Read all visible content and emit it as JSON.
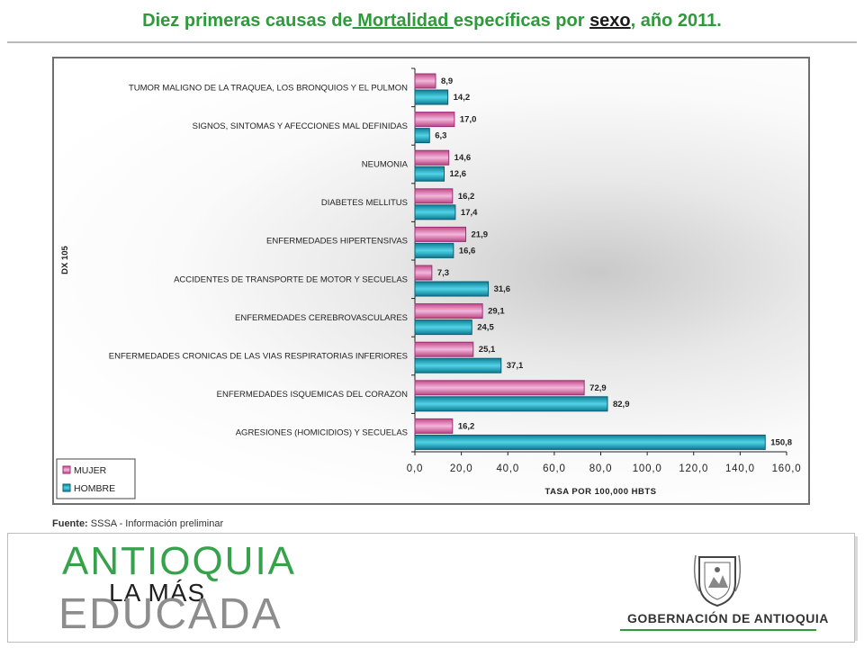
{
  "title": {
    "part1": "Diez primeras causas de",
    "part2": " Mortalidad ",
    "part3": "específicas por ",
    "part4": "sexo",
    "part5": ", año 2011."
  },
  "chart_data": {
    "type": "bar",
    "orientation": "horizontal",
    "categories": [
      "TUMOR MALIGNO DE LA TRAQUEA, LOS BRONQUIOS Y EL PULMON",
      "SIGNOS, SINTOMAS Y AFECCIONES MAL DEFINIDAS",
      "NEUMONIA",
      "DIABETES MELLITUS",
      "ENFERMEDADES HIPERTENSIVAS",
      "ACCIDENTES DE TRANSPORTE DE MOTOR Y SECUELAS",
      "ENFERMEDADES CEREBROVASCULARES",
      "ENFERMEDADES CRONICAS DE LAS VIAS RESPIRATORIAS INFERIORES",
      "ENFERMEDADES ISQUEMICAS DEL CORAZON",
      "AGRESIONES (HOMICIDIOS) Y SECUELAS"
    ],
    "series": [
      {
        "name": "MUJER",
        "color": "#d9589e",
        "values": [
          8.9,
          17.0,
          14.6,
          16.2,
          21.9,
          7.3,
          29.1,
          25.1,
          72.9,
          16.2
        ],
        "labels": [
          "8,9",
          "17,0",
          "14,6",
          "16,2",
          "21,9",
          "7,3",
          "29,1",
          "25,1",
          "72,9",
          "16,2"
        ]
      },
      {
        "name": "HOMBRE",
        "color": "#13a3be",
        "values": [
          14.2,
          6.3,
          12.6,
          17.4,
          16.6,
          31.6,
          24.5,
          37.1,
          82.9,
          150.8
        ],
        "labels": [
          "14,2",
          "6,3",
          "12,6",
          "17,4",
          "16,6",
          "31,6",
          "24,5",
          "37,1",
          "82,9",
          "150,8"
        ]
      }
    ],
    "xlim": [
      0,
      160
    ],
    "xticks": [
      "0,0",
      "20,0",
      "40,0",
      "60,0",
      "80,0",
      "100,0",
      "120,0",
      "140,0",
      "160,0"
    ],
    "xlabel": "TASA POR 100,000 HBTS",
    "ylabel": "DX 105",
    "legend_position": "bottom-left",
    "grid": false
  },
  "source": {
    "label": "Fuente:",
    "text": " SSSA - Información preliminar"
  },
  "footer": {
    "logo_line1": "ANTIOQUIA",
    "logo_line2": "LA MÁS",
    "logo_line3": "EDUCADA",
    "gov_name": "GOBERNACIÓN DE ANTIOQUIA"
  }
}
